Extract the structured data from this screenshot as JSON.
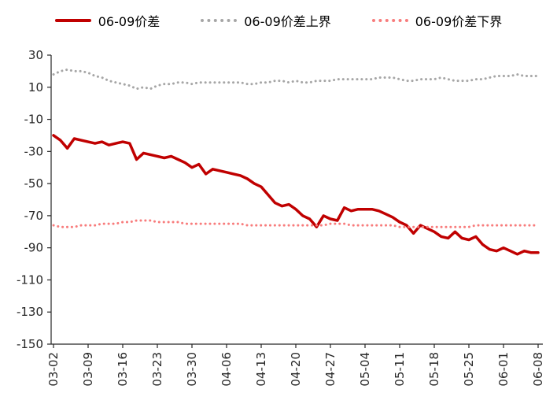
{
  "legend": {
    "items": [
      {
        "label": "06-09价差",
        "color": "#C00000",
        "style": "solid"
      },
      {
        "label": "06-09价差上界",
        "color": "#A6A6A6",
        "style": "dotted"
      },
      {
        "label": "06-09价差下界",
        "color": "#F87C7C",
        "style": "dotted"
      }
    ]
  },
  "chart_data": {
    "type": "line",
    "title": "",
    "xlabel": "",
    "ylabel": "",
    "ylim": [
      -150,
      30
    ],
    "y_ticks": [
      30,
      10,
      -10,
      -30,
      -50,
      -70,
      -90,
      -110,
      -130,
      -150
    ],
    "x_tick_labels": [
      "03-02",
      "03-09",
      "03-16",
      "03-23",
      "03-30",
      "04-06",
      "04-13",
      "04-20",
      "04-27",
      "05-04",
      "05-11",
      "05-18",
      "05-25",
      "06-01",
      "06-08"
    ],
    "x_label_every": 5,
    "grid": false,
    "legend_position": "top",
    "axis_color": "#262626",
    "series": [
      {
        "name": "06-09价差",
        "color": "#C00000",
        "style": "solid",
        "width": 3.5,
        "values": [
          -20,
          -23,
          -28,
          -22,
          -23,
          -24,
          -25,
          -24,
          -26,
          -25,
          -24,
          -25,
          -35,
          -31,
          -32,
          -33,
          -34,
          -33,
          -35,
          -37,
          -40,
          -38,
          -44,
          -41,
          -42,
          -43,
          -44,
          -45,
          -47,
          -50,
          -52,
          -57,
          -62,
          -64,
          -63,
          -66,
          -70,
          -72,
          -77,
          -70,
          -72,
          -73,
          -65,
          -67,
          -66,
          -66,
          -66,
          -67,
          -69,
          -71,
          -74,
          -76,
          -81,
          -76,
          -78,
          -80,
          -83,
          -84,
          -80,
          -84,
          -85,
          -83,
          -88,
          -91,
          -92,
          -90,
          -92,
          -94,
          -92,
          -93,
          -93
        ]
      },
      {
        "name": "06-09价差上界",
        "color": "#A6A6A6",
        "style": "dotted",
        "width": 3,
        "values": [
          18,
          20,
          21,
          20,
          20,
          19,
          17,
          16,
          14,
          13,
          12,
          11,
          9,
          10,
          9,
          11,
          12,
          12,
          13,
          13,
          12,
          13,
          13,
          13,
          13,
          13,
          13,
          13,
          12,
          12,
          13,
          13,
          14,
          14,
          13,
          14,
          13,
          13,
          14,
          14,
          14,
          15,
          15,
          15,
          15,
          15,
          15,
          16,
          16,
          16,
          15,
          14,
          14,
          15,
          15,
          15,
          16,
          15,
          14,
          14,
          14,
          15,
          15,
          16,
          17,
          17,
          17,
          18,
          17,
          17,
          17
        ]
      },
      {
        "name": "06-09价差下界",
        "color": "#F87C7C",
        "style": "dotted",
        "width": 3,
        "values": [
          -76,
          -77,
          -77,
          -77,
          -76,
          -76,
          -76,
          -75,
          -75,
          -75,
          -74,
          -74,
          -73,
          -73,
          -73,
          -74,
          -74,
          -74,
          -74,
          -75,
          -75,
          -75,
          -75,
          -75,
          -75,
          -75,
          -75,
          -75,
          -76,
          -76,
          -76,
          -76,
          -76,
          -76,
          -76,
          -76,
          -76,
          -76,
          -76,
          -76,
          -75,
          -75,
          -75,
          -76,
          -76,
          -76,
          -76,
          -76,
          -76,
          -76,
          -77,
          -77,
          -77,
          -77,
          -77,
          -77,
          -77,
          -77,
          -77,
          -77,
          -77,
          -76,
          -76,
          -76,
          -76,
          -76,
          -76,
          -76,
          -76,
          -76,
          -76
        ]
      }
    ]
  }
}
